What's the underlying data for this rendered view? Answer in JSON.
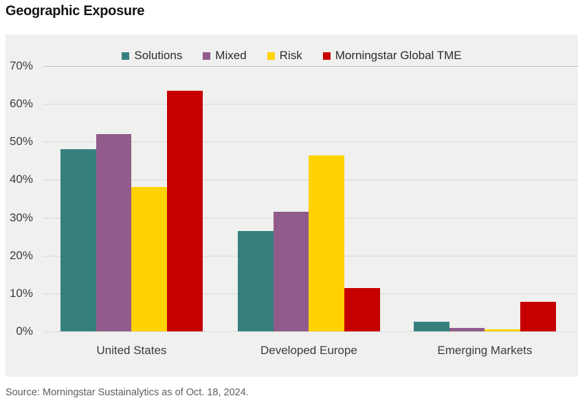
{
  "title": "Geographic Exposure",
  "source": "Source: Morningstar Sustainalytics as of Oct. 18, 2024.",
  "colors": {
    "panel_background": "#f0f0ee",
    "gridline": "#d7d7d5",
    "gridline_top": "#bfbfc3",
    "text_dark": "#2a2a2a",
    "text_axis": "#3b3b3b",
    "text_source": "#5e5e5e"
  },
  "chart_data": {
    "type": "bar",
    "title": "Geographic Exposure",
    "categories": [
      "United States",
      "Developed Europe",
      "Emerging Markets"
    ],
    "series": [
      {
        "name": "Solutions",
        "color": "#35807f",
        "values": [
          48,
          26.5,
          2.5
        ]
      },
      {
        "name": "Mixed",
        "color": "#915c8b",
        "values": [
          52,
          31.5,
          1.0
        ]
      },
      {
        "name": "Risk",
        "color": "#ffd200",
        "values": [
          38,
          46.5,
          0.5
        ]
      },
      {
        "name": "Morningstar Global TME",
        "color": "#c60000",
        "values": [
          63.5,
          11.5,
          7.8
        ]
      }
    ],
    "xlabel": "",
    "ylabel": "",
    "ytick_labels": [
      "70%",
      "60%",
      "50%",
      "40%",
      "30%",
      "20%",
      "10%",
      "0%"
    ],
    "ylim": [
      0,
      70
    ],
    "grid": true,
    "legend_position": "top-center"
  }
}
